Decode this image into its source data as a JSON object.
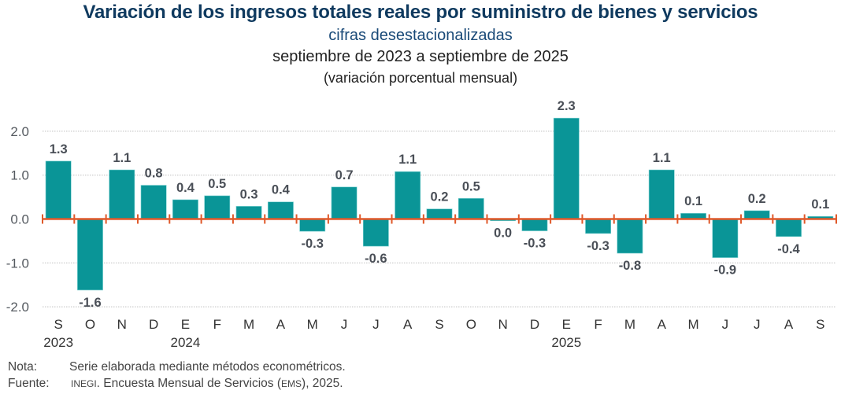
{
  "header": {
    "title": "Variación de los ingresos totales reales por suministro de bienes y servicios",
    "subtitle": "cifras desestacionalizadas",
    "period": "septiembre de 2023 a septiembre de 2025",
    "unit": "(variación porcentual mensual)"
  },
  "colors": {
    "bar": "#0a9597",
    "zero_line": "#e0592a",
    "title": "#0f3a5f",
    "subtitle": "#1a4a78",
    "labels": "#4a4f57",
    "grid": "#bfbfbf"
  },
  "chart_data": {
    "type": "bar",
    "title": "Variación de los ingresos totales reales por suministro de bienes y servicios",
    "subtitle": "cifras desestacionalizadas",
    "xlabel": "",
    "ylabel": "variación porcentual mensual",
    "categories": [
      "S",
      "O",
      "N",
      "D",
      "E",
      "F",
      "M",
      "A",
      "M",
      "J",
      "J",
      "A",
      "S",
      "O",
      "N",
      "D",
      "E",
      "F",
      "M",
      "A",
      "M",
      "J",
      "J",
      "A",
      "S"
    ],
    "year_labels": [
      {
        "index": 0,
        "label": "2023"
      },
      {
        "index": 4,
        "label": "2024"
      },
      {
        "index": 16,
        "label": "2025"
      }
    ],
    "values": [
      1.3,
      -1.6,
      1.1,
      0.8,
      0.4,
      0.5,
      0.3,
      0.4,
      -0.3,
      0.7,
      -0.6,
      1.1,
      0.2,
      0.5,
      0.0,
      -0.3,
      2.3,
      -0.3,
      -0.8,
      1.1,
      0.1,
      -0.9,
      0.2,
      -0.4,
      0.1
    ],
    "bar_heights_precise": [
      1.32,
      -1.62,
      1.12,
      0.77,
      0.44,
      0.53,
      0.29,
      0.39,
      -0.28,
      0.73,
      -0.62,
      1.08,
      0.23,
      0.47,
      -0.04,
      -0.27,
      2.3,
      -0.33,
      -0.78,
      1.12,
      0.13,
      -0.88,
      0.19,
      -0.4,
      0.06
    ],
    "data_labels": [
      "1.3",
      "-1.6",
      "1.1",
      "0.8",
      "0.4",
      "0.5",
      "0.3",
      "0.4",
      "-0.3",
      "0.7",
      "-0.6",
      "1.1",
      "0.2",
      "0.5",
      "0.0",
      "-0.3",
      "2.3",
      "-0.3",
      "-0.8",
      "1.1",
      "0.1",
      "-0.9",
      "0.2",
      "-0.4",
      "0.1"
    ],
    "yticks": [
      "2.0",
      "1.0",
      "0.0",
      "-1.0",
      "-2.0"
    ],
    "ytick_values": [
      2,
      1,
      0,
      -1,
      -2
    ],
    "ylim": [
      -2.0,
      2.0
    ],
    "grid": true,
    "legend": "none"
  },
  "notes": {
    "nota_label": "Nota:",
    "nota_text": "Serie elaborada mediante métodos econométricos.",
    "fuente_label": "Fuente:",
    "fuente_org": "INEGI",
    "fuente_text_1": ". Encuesta Mensual de Servicios (",
    "fuente_abbr": "EMS",
    "fuente_text_2": "), 2025."
  }
}
